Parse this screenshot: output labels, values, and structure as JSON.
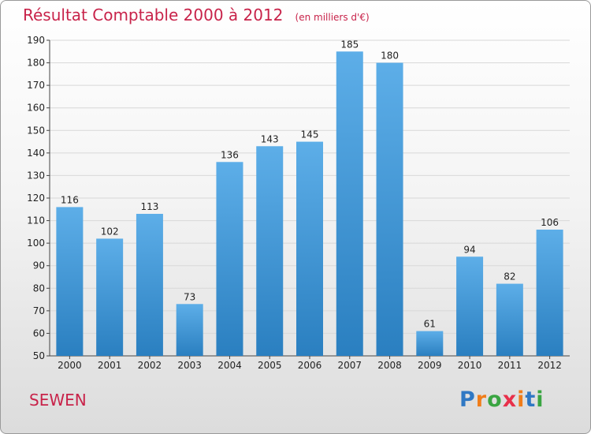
{
  "chart_data": {
    "type": "bar",
    "title": "Résultat Comptable 2000 à 2012",
    "subtitle": "(en milliers d'€)",
    "categories": [
      "2000",
      "2001",
      "2002",
      "2003",
      "2004",
      "2005",
      "2006",
      "2007",
      "2008",
      "2009",
      "2010",
      "2011",
      "2012"
    ],
    "values": [
      116,
      102,
      113,
      73,
      136,
      143,
      145,
      185,
      180,
      61,
      94,
      82,
      106
    ],
    "ylim": [
      50,
      190
    ],
    "yticks": [
      50,
      60,
      70,
      80,
      90,
      100,
      110,
      120,
      130,
      140,
      150,
      160,
      170,
      180,
      190
    ],
    "xlabel": "",
    "ylabel": "",
    "grid": true,
    "bar_color_top": "#5daee8",
    "bar_color_bottom": "#2a7fc0"
  },
  "footer": {
    "commune": "SEWEN"
  },
  "logo": {
    "letters": [
      "P",
      "r",
      "o",
      "x",
      "i",
      "t",
      "i"
    ],
    "colors": [
      "#2f78c4",
      "#f07d1a",
      "#3aa542",
      "#e8304a",
      "#f07d1a",
      "#2f78c4",
      "#3aa542"
    ]
  }
}
